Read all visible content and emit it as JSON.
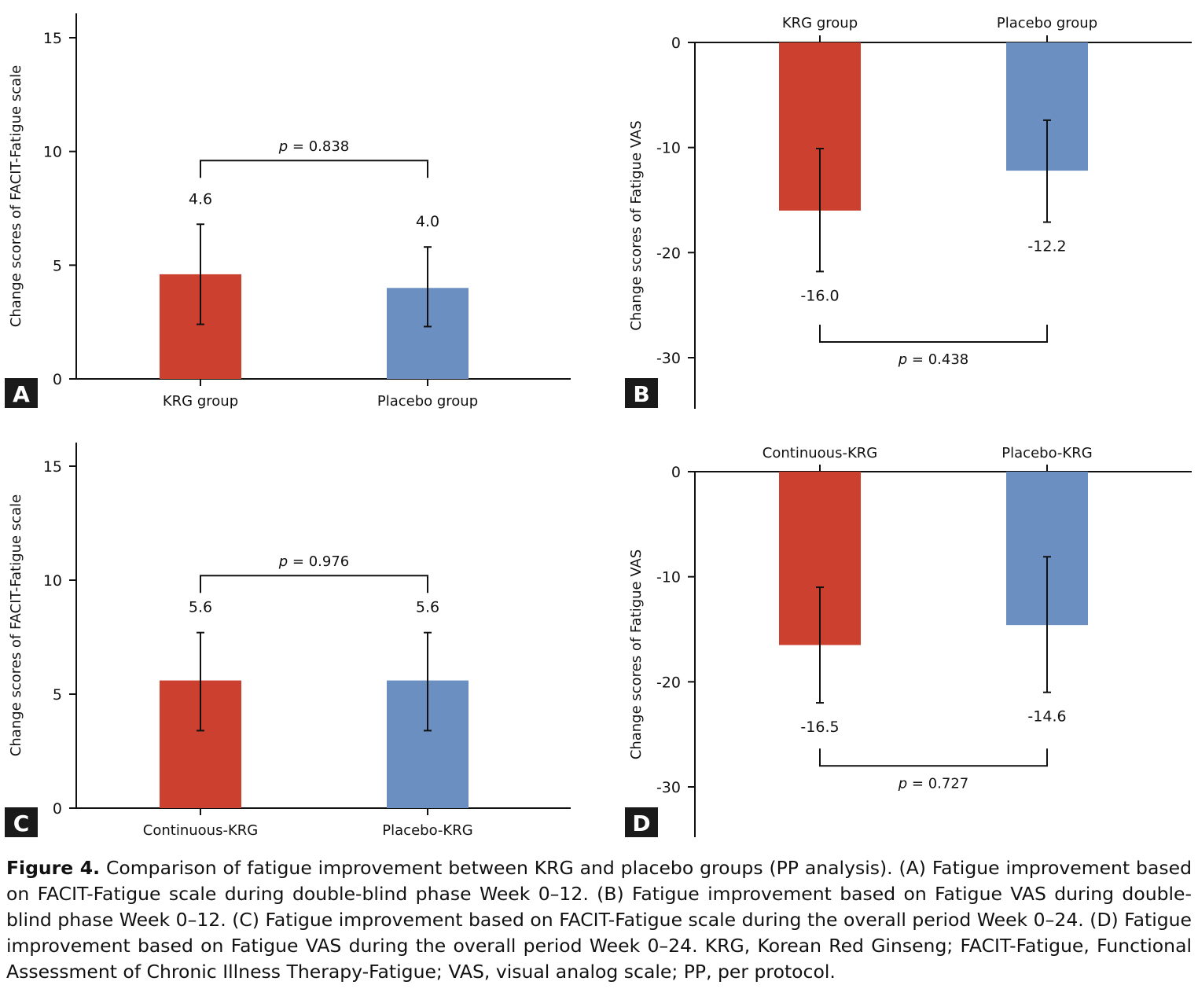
{
  "chart_data": [
    {
      "id": "A",
      "panel_label": "A",
      "type": "bar",
      "ylabel": "Change scores of FACIT-Fatigue scale",
      "ylim": [
        0,
        16
      ],
      "yticks": [
        0,
        5,
        10,
        15
      ],
      "categories": [
        "KRG group",
        "Placebo group"
      ],
      "values": [
        4.6,
        4.0
      ],
      "value_labels": [
        "4.6",
        "4.0"
      ],
      "error_low": [
        2.4,
        2.3
      ],
      "error_high": [
        6.8,
        5.8
      ],
      "colors": [
        "#cc4030",
        "#6a8fc0"
      ],
      "p_label": "= 0.838",
      "p_level": 9.6,
      "orientation": "positive"
    },
    {
      "id": "B",
      "panel_label": "B",
      "type": "bar",
      "ylabel": "Change scores of Fatigue VAS",
      "ylim": [
        -35,
        0
      ],
      "yticks": [
        0,
        -10,
        -20,
        -30
      ],
      "categories": [
        "KRG group",
        "Placebo group"
      ],
      "values": [
        -16.0,
        -12.2
      ],
      "value_labels": [
        "-16.0",
        "-12.2"
      ],
      "error_low": [
        -21.8,
        -17.1
      ],
      "error_high": [
        -10.1,
        -7.4
      ],
      "colors": [
        "#cc4030",
        "#6a8fc0"
      ],
      "p_label": "= 0.438",
      "p_level": -28.5,
      "orientation": "negative"
    },
    {
      "id": "C",
      "panel_label": "C",
      "type": "bar",
      "ylabel": "Change scores of FACIT-Fatigue scale",
      "ylim": [
        0,
        16
      ],
      "yticks": [
        0,
        5,
        10,
        15
      ],
      "categories": [
        "Continuous-KRG",
        "Placebo-KRG"
      ],
      "values": [
        5.6,
        5.6
      ],
      "value_labels": [
        "5.6",
        "5.6"
      ],
      "error_low": [
        3.4,
        3.4
      ],
      "error_high": [
        7.7,
        7.7
      ],
      "colors": [
        "#cc4030",
        "#6a8fc0"
      ],
      "p_label": "= 0.976",
      "p_level": 10.2,
      "orientation": "positive"
    },
    {
      "id": "D",
      "panel_label": "D",
      "type": "bar",
      "ylabel": "Change scores of Fatigue VAS",
      "ylim": [
        -35,
        0
      ],
      "yticks": [
        0,
        -10,
        -20,
        -30
      ],
      "categories": [
        "Continuous-KRG",
        "Placebo-KRG"
      ],
      "values": [
        -16.5,
        -14.6
      ],
      "value_labels": [
        "-16.5",
        "-14.6"
      ],
      "error_low": [
        -22.0,
        -21.0
      ],
      "error_high": [
        -11.0,
        -8.1
      ],
      "colors": [
        "#cc4030",
        "#6a8fc0"
      ],
      "p_label": "= 0.727",
      "p_level": -28.0,
      "orientation": "negative"
    }
  ],
  "p_symbol": "p",
  "caption": {
    "title": "Figure 4.",
    "text": "Comparison of fatigue improvement between KRG and placebo groups (PP analysis). (A) Fatigue improvement based on FACIT-Fatigue scale during double-blind phase Week 0–12. (B) Fatigue improvement based on Fatigue VAS during double-blind phase Week 0–12. (C) Fatigue improvement based on FACIT-Fatigue scale during the overall period Week 0–24. (D) Fatigue improvement based on Fatigue VAS during the overall period Week 0–24. KRG, Korean Red Ginseng; FACIT-Fatigue, Functional Assessment of Chronic Illness Therapy-Fatigue; VAS, visual analog scale; PP, per protocol."
  }
}
